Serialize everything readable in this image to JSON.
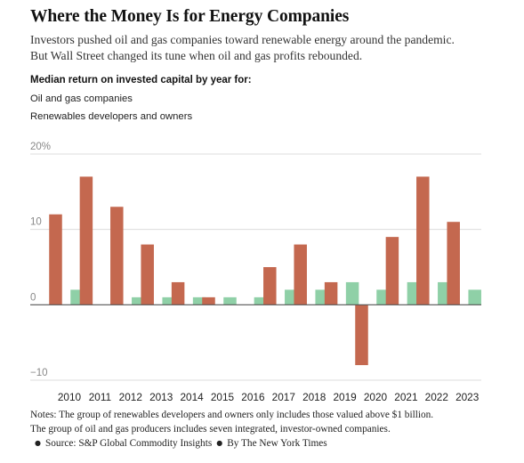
{
  "title": "Where the Money Is for Energy Companies",
  "subtitle": [
    "Investors pushed oil and gas companies toward renewable energy around the pandemic.",
    "But Wall Street changed its tune when oil and gas profits rebounded."
  ],
  "kicker": "Median return on invested capital by year for:",
  "colors": {
    "oil_gas": "#c4684f",
    "renewables": "#8fd0a7",
    "grid": "#dcdcdc",
    "zero_line": "#555555",
    "tick_label": "#888888"
  },
  "chart_data": {
    "type": "bar",
    "categories": [
      "2010",
      "2011",
      "2012",
      "2013",
      "2014",
      "2015",
      "2016",
      "2017",
      "2018",
      "2019",
      "2020",
      "2021",
      "2022",
      "2023"
    ],
    "series": [
      {
        "name": "Oil and gas companies",
        "values": [
          12,
          17,
          13,
          8,
          3,
          1,
          0,
          5,
          8,
          3,
          -8,
          9,
          17,
          11
        ]
      },
      {
        "name": "Renewables developers and owners",
        "values": [
          2,
          null,
          1,
          1,
          1,
          1,
          1,
          2,
          2,
          3,
          2,
          3,
          3,
          2
        ]
      }
    ],
    "ylim": [
      -10,
      20
    ],
    "yticks": [
      20,
      10,
      0,
      -10
    ],
    "ytick_labels": [
      "20%",
      "10",
      "0",
      "−10"
    ],
    "grid": true,
    "legend": "top-left"
  },
  "notes": [
    "Notes: The group of renewables developers and owners only includes those valued above $1 billion.",
    "The group of oil and gas producers includes seven integrated, investor-owned companies."
  ],
  "source": "Source: S&P Global Commodity Insights",
  "credit": "By The New York Times"
}
